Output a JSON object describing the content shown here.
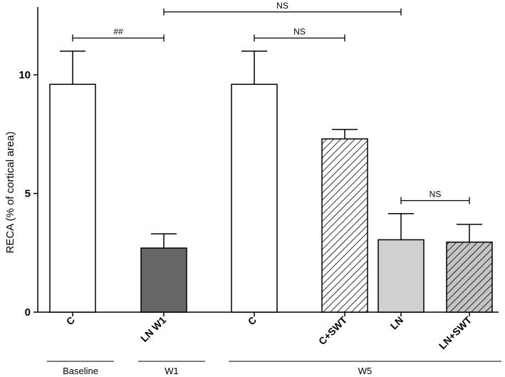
{
  "chart_data": {
    "type": "bar",
    "ylabel": "RECA (% of cortical area)",
    "xlabel": "",
    "ylim": [
      0,
      12.6
    ],
    "yticks": [
      0,
      5,
      10
    ],
    "grid": false,
    "categories": [
      "C",
      "LN W1",
      "C",
      "C+SWT",
      "LN",
      "LN+SWT"
    ],
    "values": [
      9.6,
      2.7,
      9.6,
      7.3,
      3.05,
      2.95
    ],
    "errors": [
      1.4,
      0.6,
      1.4,
      0.4,
      1.1,
      0.75
    ],
    "fills": [
      "white",
      "dark-gray",
      "white",
      "hatched-white",
      "light-gray",
      "hatched-gray"
    ],
    "groups": [
      {
        "label": "Baseline",
        "categories": [
          0
        ]
      },
      {
        "label": "W1",
        "categories": [
          1
        ]
      },
      {
        "label": "W5",
        "categories": [
          2,
          3,
          4,
          5
        ]
      }
    ],
    "annotations": [
      {
        "from": 0,
        "to": 1,
        "label": "##",
        "y": 11.55
      },
      {
        "from": 2,
        "to": 3,
        "label": "NS",
        "y": 11.55
      },
      {
        "from": 1,
        "to": 4,
        "label": "NS",
        "y": 12.65
      },
      {
        "from": 4,
        "to": 5,
        "label": "NS",
        "y": 4.7
      }
    ]
  },
  "colors": {
    "white": "#ffffff",
    "dark-gray": "#666666",
    "light-gray": "#d0d0d0",
    "hatched-white": "#ffffff",
    "hatched-gray": "#c4c4c4",
    "axis": "#000000"
  }
}
